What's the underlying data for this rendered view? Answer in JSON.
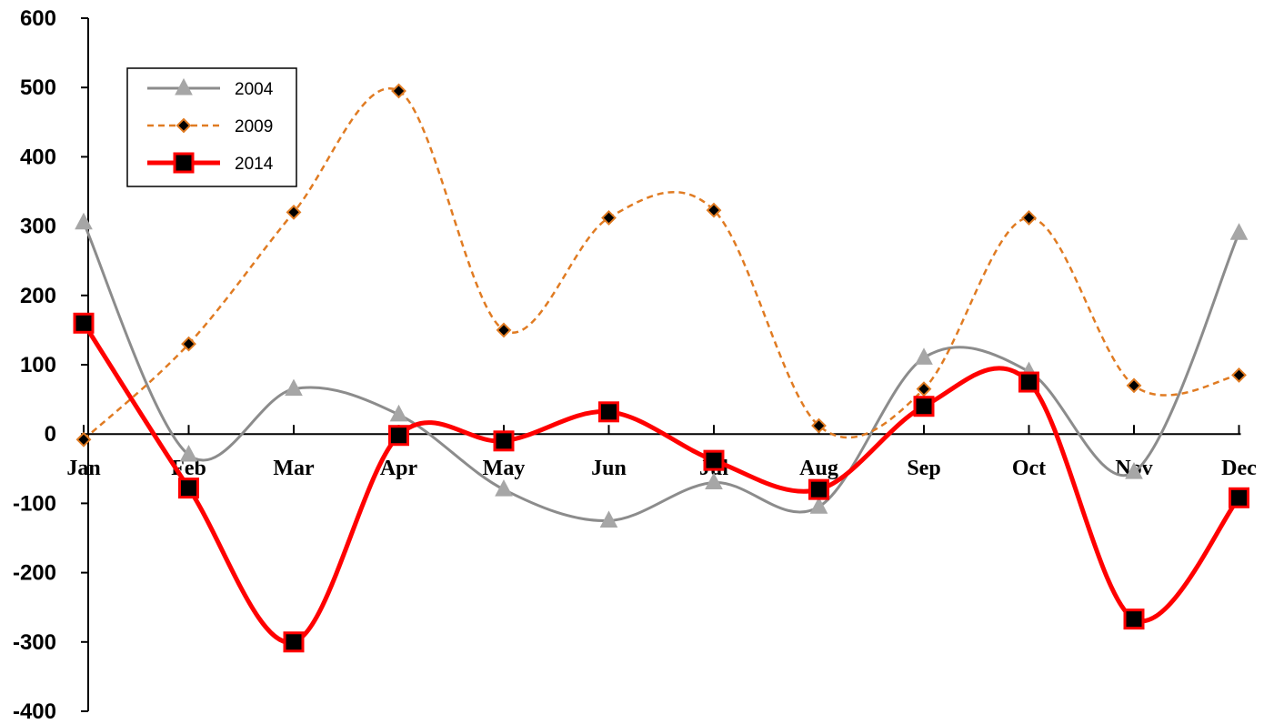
{
  "chart_data": {
    "type": "line",
    "title": "",
    "xlabel": "",
    "ylabel": "",
    "categories": [
      "Jan",
      "Feb",
      "Mar",
      "Apr",
      "May",
      "Jun",
      "Jul",
      "Aug",
      "Sep",
      "Oct",
      "Nov",
      "Dec"
    ],
    "ylim": [
      -400,
      600
    ],
    "yticks": [
      "600",
      "500",
      "400",
      "300",
      "200",
      "100",
      "0",
      "-100",
      "-200",
      "-300",
      "-400"
    ],
    "grid": false,
    "smoothed": true,
    "legend_position": "top-left",
    "series": [
      {
        "name": "2004",
        "color": "#8c8c8c",
        "style": "solid",
        "marker": "triangle",
        "values": [
          305,
          -30,
          65,
          28,
          -80,
          -125,
          -70,
          -105,
          110,
          90,
          -55,
          290
        ]
      },
      {
        "name": "2009",
        "color": "#e07b22",
        "style": "dashed",
        "marker": "diamond",
        "values": [
          -8,
          130,
          320,
          495,
          150,
          312,
          323,
          12,
          65,
          312,
          70,
          85
        ]
      },
      {
        "name": "2014",
        "color": "#ff0000",
        "style": "solid",
        "marker": "square",
        "values": [
          160,
          -78,
          -300,
          -2,
          -10,
          32,
          -38,
          -80,
          40,
          75,
          -267,
          -92
        ]
      }
    ]
  }
}
